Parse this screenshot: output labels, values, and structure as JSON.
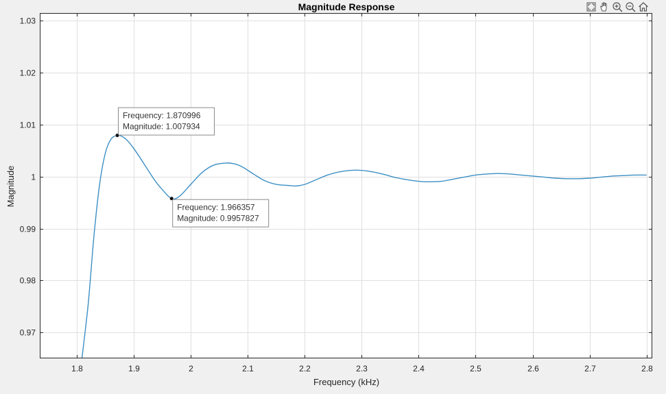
{
  "chart_data": {
    "type": "line",
    "title": "Magnitude Response",
    "xlabel": "Frequency (kHz)",
    "ylabel": "Magnitude",
    "xlim": [
      1.735,
      2.81
    ],
    "ylim": [
      0.965,
      1.0315
    ],
    "grid": true,
    "xticks": [
      "1.8",
      "1.9",
      "2",
      "2.1",
      "2.2",
      "2.3",
      "2.4",
      "2.5",
      "2.6",
      "2.7",
      "2.8"
    ],
    "yticks": [
      "0.97",
      "0.98",
      "0.99",
      "1",
      "1.01",
      "1.02",
      "1.03"
    ],
    "line_color": "#3b8fc4",
    "series": [
      {
        "x": [
          1.808,
          1.82,
          1.83,
          1.84,
          1.85,
          1.86,
          1.871,
          1.88,
          1.89,
          1.9,
          1.91,
          1.92,
          1.93,
          1.94,
          1.95,
          1.966,
          1.98,
          2.0,
          2.02,
          2.04,
          2.06,
          2.075,
          2.09,
          2.11,
          2.13,
          2.15,
          2.17,
          2.185,
          2.2,
          2.22,
          2.24,
          2.26,
          2.28,
          2.3,
          2.32,
          2.34,
          2.36,
          2.38,
          2.4,
          2.415,
          2.44,
          2.46,
          2.48,
          2.5,
          2.52,
          2.54,
          2.56,
          2.58,
          2.6,
          2.62,
          2.64,
          2.66,
          2.68,
          2.7,
          2.72,
          2.74,
          2.76,
          2.78,
          2.8
        ],
        "values": [
          0.9641,
          0.9755,
          0.9885,
          0.9985,
          1.0045,
          1.0072,
          1.00793,
          1.0077,
          1.0068,
          1.0054,
          1.0038,
          1.0021,
          1.0004,
          0.9988,
          0.9975,
          0.99578,
          0.9962,
          0.9985,
          1.0008,
          1.0022,
          1.0026,
          1.0025,
          1.0019,
          1.0005,
          0.9992,
          0.9985,
          0.9983,
          0.9982,
          0.9985,
          0.9994,
          1.0003,
          1.0009,
          1.0012,
          1.0012,
          1.0009,
          1.0004,
          0.9998,
          0.9994,
          0.9991,
          0.999,
          0.9991,
          0.9995,
          0.9999,
          1.0003,
          1.0005,
          1.0006,
          1.0005,
          1.0003,
          1.0001,
          0.9999,
          0.9997,
          0.9996,
          0.9996,
          0.9997,
          0.9999,
          1.0001,
          1.0002,
          1.0003,
          1.0003
        ]
      }
    ],
    "datatips": [
      {
        "x": 1.870996,
        "y": 1.007934,
        "line1": "Frequency: 1.870996",
        "line2": "Magnitude: 1.007934",
        "placement": "top-right"
      },
      {
        "x": 1.966357,
        "y": 0.9957827,
        "line1": "Frequency: 1.966357",
        "line2": "Magnitude: 0.9957827",
        "placement": "bottom-right"
      }
    ]
  },
  "toolbar": {
    "items": [
      "fit-view-icon",
      "pan-icon",
      "zoom-in-icon",
      "zoom-out-icon",
      "home-icon"
    ]
  }
}
